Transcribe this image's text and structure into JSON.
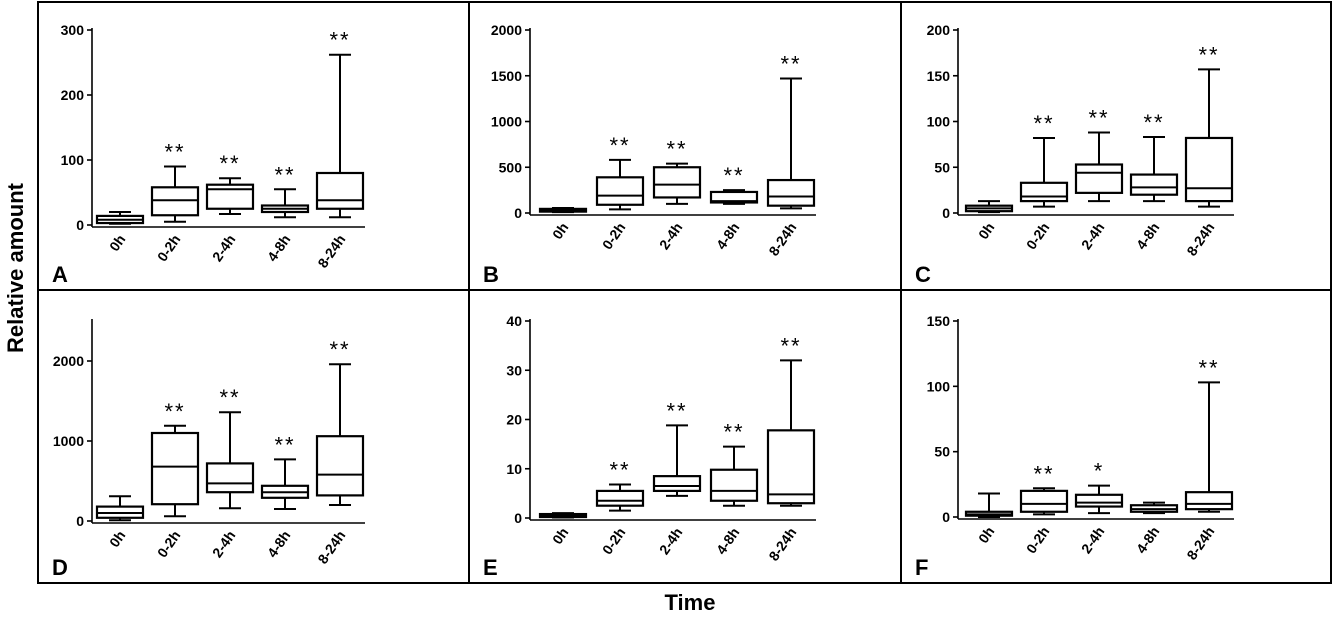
{
  "figure": {
    "ylabel": "Relative amount",
    "xlabel": "Time"
  },
  "chart_data": [
    {
      "type": "box",
      "panel": "A",
      "categories": [
        "0h",
        "0-2h",
        "2-4h",
        "4-8h",
        "8-24h"
      ],
      "yticks": [
        0,
        100,
        200,
        300
      ],
      "ylim": [
        0,
        300
      ],
      "boxes": [
        {
          "min": 2,
          "q1": 3,
          "median": 8,
          "q3": 14,
          "max": 20,
          "sig": ""
        },
        {
          "min": 5,
          "q1": 15,
          "median": 38,
          "q3": 58,
          "max": 90,
          "sig": "**"
        },
        {
          "min": 17,
          "q1": 25,
          "median": 55,
          "q3": 62,
          "max": 72,
          "sig": "**"
        },
        {
          "min": 12,
          "q1": 20,
          "median": 25,
          "q3": 30,
          "max": 55,
          "sig": "**"
        },
        {
          "min": 12,
          "q1": 25,
          "median": 38,
          "q3": 80,
          "max": 262,
          "sig": "**"
        }
      ]
    },
    {
      "type": "box",
      "panel": "B",
      "categories": [
        "0h",
        "0-2h",
        "2-4h",
        "4-8h",
        "8-24h"
      ],
      "yticks": [
        0,
        500,
        1000,
        1500,
        2000
      ],
      "ylim": [
        0,
        2000
      ],
      "boxes": [
        {
          "min": 10,
          "q1": 15,
          "median": 30,
          "q3": 45,
          "max": 55,
          "sig": ""
        },
        {
          "min": 40,
          "q1": 90,
          "median": 190,
          "q3": 390,
          "max": 580,
          "sig": "**"
        },
        {
          "min": 100,
          "q1": 170,
          "median": 310,
          "q3": 500,
          "max": 540,
          "sig": "**"
        },
        {
          "min": 100,
          "q1": 115,
          "median": 130,
          "q3": 230,
          "max": 250,
          "sig": "**"
        },
        {
          "min": 50,
          "q1": 80,
          "median": 180,
          "q3": 360,
          "max": 1470,
          "sig": "**"
        }
      ]
    },
    {
      "type": "box",
      "panel": "C",
      "categories": [
        "0h",
        "0-2h",
        "2-4h",
        "4-8h",
        "8-24h"
      ],
      "yticks": [
        0,
        50,
        100,
        150,
        200
      ],
      "ylim": [
        0,
        200
      ],
      "boxes": [
        {
          "min": 1,
          "q1": 2,
          "median": 5,
          "q3": 8,
          "max": 13,
          "sig": ""
        },
        {
          "min": 7,
          "q1": 13,
          "median": 18,
          "q3": 33,
          "max": 82,
          "sig": "**"
        },
        {
          "min": 13,
          "q1": 22,
          "median": 44,
          "q3": 53,
          "max": 88,
          "sig": "**"
        },
        {
          "min": 13,
          "q1": 20,
          "median": 28,
          "q3": 42,
          "max": 83,
          "sig": "**"
        },
        {
          "min": 7,
          "q1": 13,
          "median": 27,
          "q3": 82,
          "max": 157,
          "sig": "**"
        }
      ]
    },
    {
      "type": "box",
      "panel": "D",
      "categories": [
        "0h",
        "0-2h",
        "2-4h",
        "4-8h",
        "8-24h"
      ],
      "yticks": [
        0,
        1000,
        2000
      ],
      "ylim": [
        0,
        2500
      ],
      "boxes": [
        {
          "min": 10,
          "q1": 40,
          "median": 100,
          "q3": 180,
          "max": 310,
          "sig": ""
        },
        {
          "min": 60,
          "q1": 210,
          "median": 680,
          "q3": 1100,
          "max": 1190,
          "sig": "**"
        },
        {
          "min": 160,
          "q1": 360,
          "median": 470,
          "q3": 720,
          "max": 1360,
          "sig": "**"
        },
        {
          "min": 150,
          "q1": 290,
          "median": 360,
          "q3": 440,
          "max": 770,
          "sig": "**"
        },
        {
          "min": 200,
          "q1": 320,
          "median": 580,
          "q3": 1060,
          "max": 1960,
          "sig": "**"
        }
      ]
    },
    {
      "type": "box",
      "panel": "E",
      "categories": [
        "0h",
        "0-2h",
        "2-4h",
        "4-8h",
        "8-24h"
      ],
      "yticks": [
        0,
        10,
        20,
        30,
        40
      ],
      "ylim": [
        0,
        40
      ],
      "boxes": [
        {
          "min": 0.1,
          "q1": 0.2,
          "median": 0.5,
          "q3": 0.8,
          "max": 1.0,
          "sig": ""
        },
        {
          "min": 1.5,
          "q1": 2.5,
          "median": 3.5,
          "q3": 5.5,
          "max": 6.8,
          "sig": "**"
        },
        {
          "min": 4.5,
          "q1": 5.5,
          "median": 6.5,
          "q3": 8.5,
          "max": 18.8,
          "sig": "**"
        },
        {
          "min": 2.5,
          "q1": 3.5,
          "median": 5.5,
          "q3": 9.8,
          "max": 14.5,
          "sig": "**"
        },
        {
          "min": 2.5,
          "q1": 3.0,
          "median": 4.8,
          "q3": 17.8,
          "max": 32.0,
          "sig": "**"
        }
      ]
    },
    {
      "type": "box",
      "panel": "F",
      "categories": [
        "0h",
        "0-2h",
        "2-4h",
        "4-8h",
        "8-24h"
      ],
      "yticks": [
        0,
        50,
        100,
        150
      ],
      "ylim": [
        0,
        150
      ],
      "boxes": [
        {
          "min": 0,
          "q1": 1,
          "median": 2,
          "q3": 4,
          "max": 18,
          "sig": ""
        },
        {
          "min": 2,
          "q1": 4,
          "median": 10,
          "q3": 20,
          "max": 22,
          "sig": "**"
        },
        {
          "min": 3,
          "q1": 8,
          "median": 11,
          "q3": 17,
          "max": 24,
          "sig": "*"
        },
        {
          "min": 3,
          "q1": 4,
          "median": 6,
          "q3": 9,
          "max": 11,
          "sig": ""
        },
        {
          "min": 4,
          "q1": 6,
          "median": 10,
          "q3": 19,
          "max": 103,
          "sig": "**"
        }
      ]
    }
  ]
}
